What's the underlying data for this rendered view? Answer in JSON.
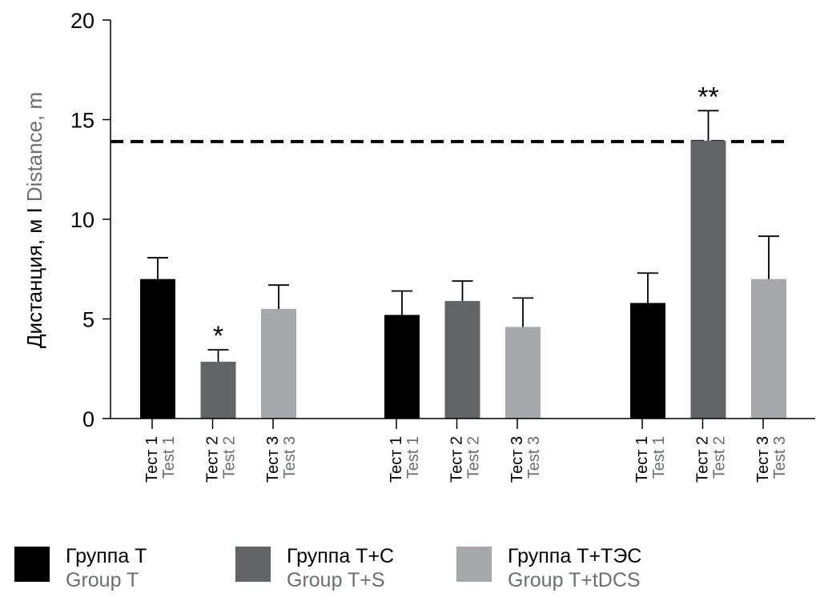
{
  "chart_data": {
    "type": "bar",
    "title": "",
    "ylabel_ru": "Дистанция, м",
    "ylabel_sep": " I ",
    "ylabel_en": "Distance, m",
    "ylim": [
      0,
      20
    ],
    "yticks": [
      0,
      5,
      10,
      15,
      20
    ],
    "reference_line": {
      "value": 13.9,
      "style": "dashed"
    },
    "groups": [
      "Группа T",
      "Группа T+C",
      "Группа T+ТЭС"
    ],
    "categories": [
      {
        "ru": "Тест 1",
        "en": "Test 1"
      },
      {
        "ru": "Тест 2",
        "en": "Test 2"
      },
      {
        "ru": "Тест 3",
        "en": "Test 3"
      }
    ],
    "series": [
      {
        "name": "Группа T / Group T",
        "values": [
          7.0,
          2.85,
          5.5
        ],
        "errors": [
          1.07,
          0.6,
          1.2
        ]
      },
      {
        "name": "Группа T+C / Group T+S",
        "values": [
          5.2,
          5.9,
          4.6
        ],
        "errors": [
          1.2,
          1.0,
          1.45
        ]
      },
      {
        "name": "Группа T+ТЭС / Group T+tDCS",
        "values": [
          5.8,
          13.95,
          7.0
        ],
        "errors": [
          1.5,
          1.5,
          2.15
        ]
      }
    ],
    "bar_colors": [
      "#000000",
      "#636466",
      "#a7a8ab"
    ],
    "annotations": [
      {
        "group": 0,
        "test": 1,
        "text": "*"
      },
      {
        "group": 2,
        "test": 1,
        "text": "**"
      }
    ],
    "grid": false,
    "legend_position": "bottom"
  },
  "legend": [
    {
      "ru": "Группа T",
      "en": "Group T",
      "color": "#000000"
    },
    {
      "ru": "Группа T+C",
      "en": "Group T+S",
      "color": "#636466"
    },
    {
      "ru": "Группа T+ТЭС",
      "en": "Group T+tDCS",
      "color": "#a7a8ab"
    }
  ]
}
